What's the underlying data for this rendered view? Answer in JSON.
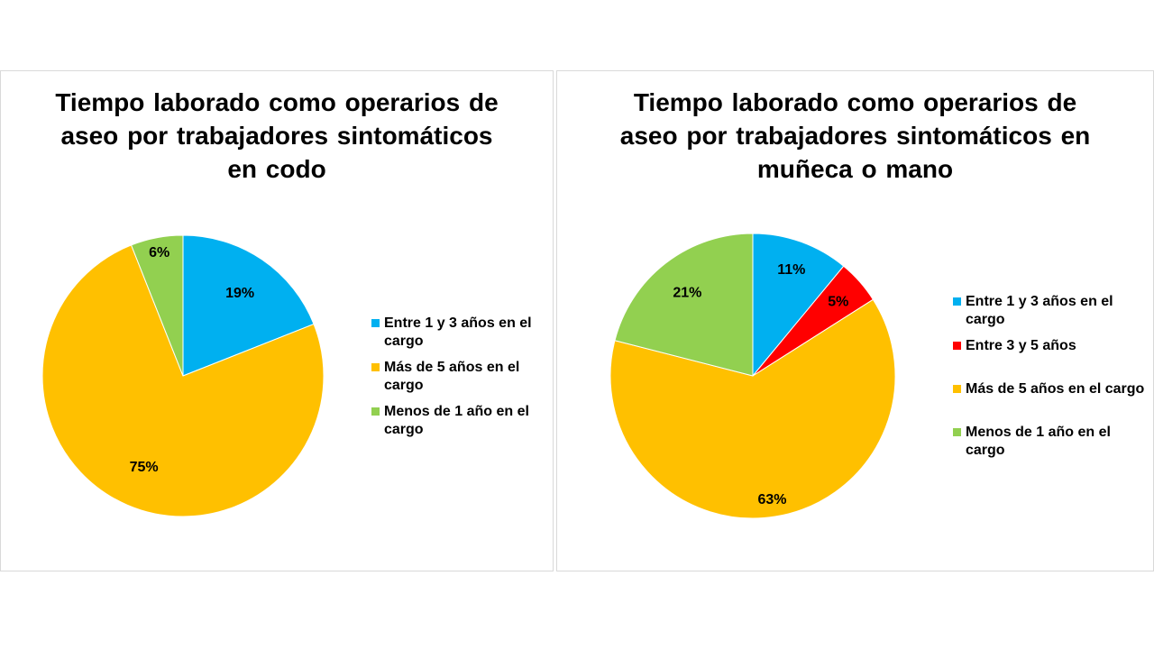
{
  "chart_data": [
    {
      "type": "pie",
      "title": "Tiempo laborado como operarios de aseo por trabajadores sintomáticos en codo",
      "categories": [
        "Entre 1 y 3 años en el cargo",
        "Más de 5 años en el cargo",
        "Menos de 1 año en el cargo"
      ],
      "values": [
        19,
        75,
        6
      ],
      "labels": [
        "19%",
        "75%",
        "6%"
      ],
      "colors": [
        "#00B0F0",
        "#FFC000",
        "#92D050"
      ],
      "legend": "right"
    },
    {
      "type": "pie",
      "title": "Tiempo laborado como operarios de aseo por trabajadores sintomáticos en muñeca o mano",
      "categories": [
        "Entre 1 y 3 años en el cargo",
        "Entre 3 y 5 años",
        "Más de 5 años en el cargo",
        "Menos de 1 año en el cargo"
      ],
      "values": [
        11,
        5,
        63,
        21
      ],
      "labels": [
        "11%",
        "5%",
        "63%",
        "21%"
      ],
      "colors": [
        "#00B0F0",
        "#FF0000",
        "#FFC000",
        "#92D050"
      ],
      "legend": "right"
    }
  ]
}
